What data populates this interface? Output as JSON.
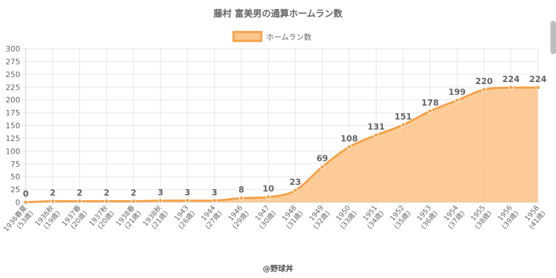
{
  "chart_data": {
    "type": "area",
    "title": "藤村 富美男の通算ホームラン数",
    "legend": {
      "label": "ホームラン数",
      "position": "top"
    },
    "categories": [
      [
        "1936春夏",
        "(53歳)"
      ],
      [
        "1936秋",
        "(19歳)"
      ],
      [
        "1937春",
        "(20歳)"
      ],
      [
        "1937秋",
        "(20歳)"
      ],
      [
        "1938春",
        "(21歳)"
      ],
      [
        "1938秋",
        "(21歳)"
      ],
      [
        "1943",
        "(26歳)"
      ],
      [
        "1944",
        "(27歳)"
      ],
      [
        "1946",
        "(29歳)"
      ],
      [
        "1947",
        "(30歳)"
      ],
      [
        "1948",
        "(31歳)"
      ],
      [
        "1949",
        "(32歳)"
      ],
      [
        "1950",
        "(33歳)"
      ],
      [
        "1951",
        "(34歳)"
      ],
      [
        "1952",
        "(35歳)"
      ],
      [
        "1953",
        "(36歳)"
      ],
      [
        "1954",
        "(37歳)"
      ],
      [
        "1955",
        "(38歳)"
      ],
      [
        "1956",
        "(39歳)"
      ],
      [
        "1958",
        "(41歳)"
      ]
    ],
    "values": [
      0,
      2,
      2,
      2,
      2,
      3,
      3,
      3,
      8,
      10,
      23,
      69,
      108,
      131,
      151,
      178,
      199,
      220,
      224,
      224
    ],
    "ylim": [
      0,
      300
    ],
    "yticks": [
      0,
      25,
      50,
      75,
      100,
      125,
      150,
      175,
      200,
      225,
      250,
      275,
      300
    ],
    "grid": true,
    "colors": {
      "line": "#f5a149",
      "fill": "#fdc58c",
      "point": "#f5a149"
    }
  },
  "footer": "@野球丼"
}
